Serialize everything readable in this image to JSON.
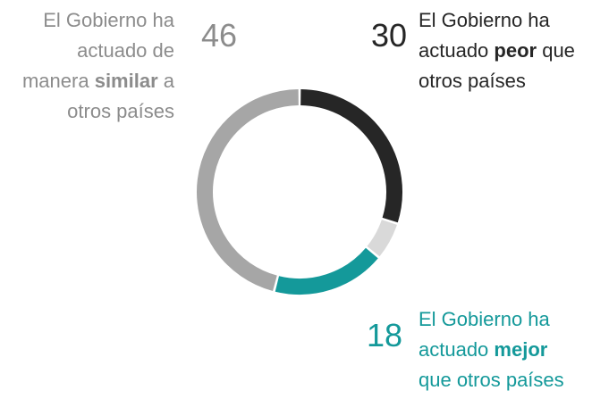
{
  "chart_data": {
    "type": "donut",
    "categories": [
      [
        "El Gobierno ha",
        "actuado ",
        "peor",
        " que",
        "otros países"
      ],
      null,
      [
        "El Gobierno ha",
        "actuado ",
        "mejor",
        "que otros países"
      ],
      [
        "El Gobierno ha",
        "actuado de",
        "manera ",
        "similar",
        " a",
        "otros países"
      ]
    ],
    "values": [
      30,
      6,
      18,
      46
    ],
    "colors": [
      "#262626",
      "#d9d9d9",
      "#14999a",
      "#a6a6a6"
    ],
    "text_colors": [
      "#262626",
      null,
      "#14999a",
      "#8c8c8c"
    ]
  }
}
